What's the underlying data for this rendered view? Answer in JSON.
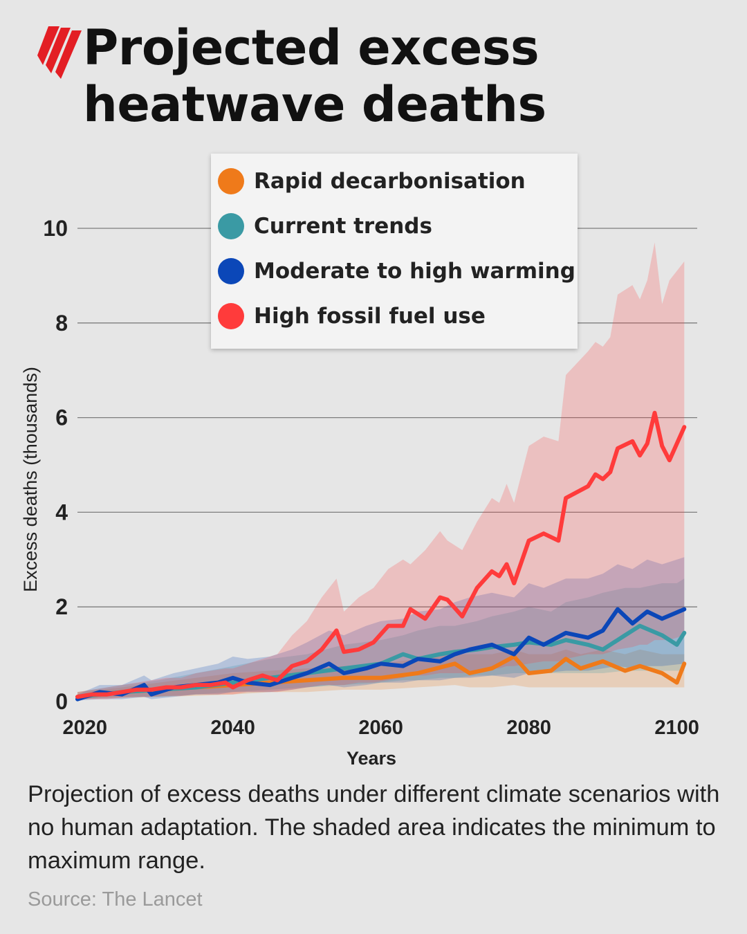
{
  "header": {
    "title": "Projected excess heatwave deaths",
    "logo": "sbs-logo"
  },
  "legend": {
    "items": [
      {
        "label": "Rapid decarbonisation",
        "color": "#ef7a1a"
      },
      {
        "label": "Current trends",
        "color": "#3a9aa4"
      },
      {
        "label": "Moderate to high warming",
        "color": "#0b47b8"
      },
      {
        "label": "High fossil fuel use",
        "color": "#ff3b3b"
      }
    ]
  },
  "chart_data": {
    "type": "line",
    "title": "Projected excess heatwave deaths",
    "xlabel": "Years",
    "ylabel": "Excess deaths (thousands)",
    "xlim": [
      2019,
      2102
    ],
    "ylim": [
      0,
      10.5
    ],
    "xticks": [
      "2020",
      "2040",
      "2060",
      "2080",
      "2100"
    ],
    "yticks": [
      "0",
      "2",
      "4",
      "6",
      "8",
      "10"
    ],
    "grid": "horizontal",
    "legend_position": "top-center",
    "shaded_area": "minimum to maximum range",
    "series": [
      {
        "name": "Rapid decarbonisation",
        "color": "#ef7a1a",
        "x": [
          2019,
          2025,
          2030,
          2035,
          2040,
          2045,
          2050,
          2055,
          2060,
          2065,
          2070,
          2072,
          2075,
          2078,
          2080,
          2083,
          2085,
          2087,
          2090,
          2093,
          2095,
          2098,
          2100,
          2101
        ],
        "y": [
          0.1,
          0.2,
          0.25,
          0.3,
          0.35,
          0.4,
          0.45,
          0.5,
          0.5,
          0.6,
          0.8,
          0.6,
          0.7,
          0.95,
          0.6,
          0.65,
          0.9,
          0.7,
          0.85,
          0.65,
          0.75,
          0.6,
          0.4,
          0.8
        ],
        "range_min": [
          0.05,
          0.08,
          0.1,
          0.12,
          0.15,
          0.2,
          0.2,
          0.25,
          0.25,
          0.3,
          0.35,
          0.3,
          0.3,
          0.35,
          0.3,
          0.3,
          0.3,
          0.3,
          0.3,
          0.3,
          0.3,
          0.3,
          0.3,
          0.3
        ],
        "range_max": [
          0.2,
          0.3,
          0.4,
          0.5,
          0.6,
          0.65,
          0.7,
          0.75,
          0.8,
          0.9,
          1.0,
          1.0,
          1.0,
          1.1,
          1.0,
          1.0,
          1.1,
          1.0,
          1.1,
          1.0,
          1.1,
          1.0,
          1.0,
          1.0
        ]
      },
      {
        "name": "Current trends",
        "color": "#3a9aa4",
        "x": [
          2019,
          2025,
          2030,
          2035,
          2040,
          2045,
          2050,
          2055,
          2060,
          2063,
          2065,
          2068,
          2070,
          2073,
          2075,
          2078,
          2080,
          2083,
          2085,
          2088,
          2090,
          2093,
          2095,
          2098,
          2100,
          2101
        ],
        "y": [
          0.1,
          0.2,
          0.25,
          0.3,
          0.4,
          0.5,
          0.6,
          0.7,
          0.8,
          1.0,
          0.9,
          1.0,
          1.05,
          1.1,
          1.15,
          1.2,
          1.25,
          1.2,
          1.3,
          1.2,
          1.1,
          1.4,
          1.6,
          1.4,
          1.2,
          1.45
        ],
        "range_min": [
          0.05,
          0.1,
          0.1,
          0.15,
          0.2,
          0.25,
          0.3,
          0.35,
          0.4,
          0.45,
          0.45,
          0.5,
          0.5,
          0.55,
          0.55,
          0.6,
          0.6,
          0.6,
          0.6,
          0.6,
          0.6,
          0.65,
          0.65,
          0.65,
          0.65,
          0.65
        ],
        "range_max": [
          0.2,
          0.35,
          0.45,
          0.6,
          0.75,
          0.9,
          1.0,
          1.2,
          1.3,
          1.4,
          1.5,
          1.6,
          1.6,
          1.7,
          1.8,
          1.9,
          2.0,
          1.9,
          2.1,
          2.2,
          2.3,
          2.4,
          2.4,
          2.5,
          2.5,
          2.6
        ]
      },
      {
        "name": "Moderate to high warming",
        "color": "#0b47b8",
        "x": [
          2019,
          2022,
          2025,
          2028,
          2029,
          2032,
          2035,
          2038,
          2040,
          2042,
          2045,
          2048,
          2050,
          2053,
          2055,
          2058,
          2060,
          2063,
          2065,
          2068,
          2070,
          2072,
          2075,
          2078,
          2080,
          2082,
          2085,
          2088,
          2090,
          2092,
          2094,
          2096,
          2098,
          2101
        ],
        "y": [
          0.05,
          0.2,
          0.15,
          0.35,
          0.15,
          0.3,
          0.35,
          0.4,
          0.5,
          0.4,
          0.35,
          0.5,
          0.6,
          0.8,
          0.6,
          0.7,
          0.8,
          0.75,
          0.9,
          0.85,
          1.0,
          1.1,
          1.2,
          1.0,
          1.35,
          1.2,
          1.45,
          1.35,
          1.5,
          1.95,
          1.65,
          1.9,
          1.75,
          1.95
        ],
        "range_min": [
          0.02,
          0.05,
          0.05,
          0.1,
          0.05,
          0.1,
          0.15,
          0.15,
          0.2,
          0.2,
          0.2,
          0.25,
          0.3,
          0.35,
          0.3,
          0.35,
          0.4,
          0.4,
          0.45,
          0.45,
          0.5,
          0.5,
          0.55,
          0.5,
          0.6,
          0.6,
          0.65,
          0.65,
          0.7,
          0.75,
          0.7,
          0.75,
          0.75,
          0.8
        ],
        "range_max": [
          0.15,
          0.35,
          0.35,
          0.55,
          0.45,
          0.6,
          0.7,
          0.8,
          0.95,
          0.9,
          0.95,
          1.1,
          1.25,
          1.5,
          1.4,
          1.6,
          1.7,
          1.75,
          1.9,
          1.95,
          2.1,
          2.2,
          2.3,
          2.2,
          2.5,
          2.4,
          2.6,
          2.6,
          2.7,
          2.9,
          2.8,
          3.0,
          2.9,
          3.05
        ]
      },
      {
        "name": "High fossil fuel use",
        "color": "#ff3b3b",
        "x": [
          2019,
          2021,
          2023,
          2025,
          2027,
          2029,
          2031,
          2033,
          2035,
          2037,
          2039,
          2040,
          2042,
          2044,
          2046,
          2048,
          2050,
          2052,
          2054,
          2055,
          2057,
          2059,
          2061,
          2063,
          2064,
          2066,
          2068,
          2069,
          2071,
          2073,
          2075,
          2076,
          2077,
          2078,
          2080,
          2082,
          2084,
          2085,
          2088,
          2089,
          2090,
          2091,
          2092,
          2094,
          2095,
          2096,
          2097,
          2098,
          2099,
          2101
        ],
        "y": [
          0.1,
          0.15,
          0.15,
          0.2,
          0.25,
          0.25,
          0.3,
          0.3,
          0.35,
          0.35,
          0.4,
          0.3,
          0.45,
          0.55,
          0.45,
          0.75,
          0.85,
          1.1,
          1.5,
          1.05,
          1.1,
          1.25,
          1.6,
          1.6,
          1.95,
          1.75,
          2.2,
          2.15,
          1.8,
          2.4,
          2.75,
          2.65,
          2.9,
          2.5,
          3.4,
          3.55,
          3.4,
          4.3,
          4.55,
          4.8,
          4.7,
          4.85,
          5.35,
          5.5,
          5.2,
          5.45,
          6.1,
          5.4,
          5.1,
          5.8
        ],
        "range_min": [
          0.05,
          0.05,
          0.05,
          0.08,
          0.1,
          0.1,
          0.12,
          0.12,
          0.15,
          0.15,
          0.15,
          0.15,
          0.2,
          0.2,
          0.2,
          0.25,
          0.3,
          0.35,
          0.35,
          0.35,
          0.4,
          0.4,
          0.45,
          0.5,
          0.55,
          0.55,
          0.6,
          0.6,
          0.6,
          0.65,
          0.7,
          0.7,
          0.75,
          0.75,
          0.8,
          0.85,
          0.85,
          0.9,
          1.0,
          1.0,
          1.0,
          1.05,
          1.1,
          1.15,
          1.2,
          1.2,
          1.3,
          1.3,
          1.3,
          1.4
        ],
        "range_max": [
          0.2,
          0.25,
          0.3,
          0.35,
          0.4,
          0.45,
          0.5,
          0.5,
          0.6,
          0.65,
          0.7,
          0.7,
          0.8,
          0.9,
          1.0,
          1.4,
          1.7,
          2.2,
          2.6,
          1.9,
          2.2,
          2.4,
          2.8,
          3.0,
          2.9,
          3.2,
          3.6,
          3.4,
          3.2,
          3.8,
          4.3,
          4.2,
          4.6,
          4.2,
          5.4,
          5.6,
          5.5,
          6.9,
          7.4,
          7.6,
          7.5,
          7.7,
          8.6,
          8.8,
          8.5,
          8.9,
          9.7,
          8.4,
          8.9,
          9.3
        ]
      }
    ]
  },
  "caption": "Projection of excess deaths under different climate scenarios with no human adaptation. The shaded area indicates the minimum to maximum range.",
  "source": "Source: The Lancet"
}
